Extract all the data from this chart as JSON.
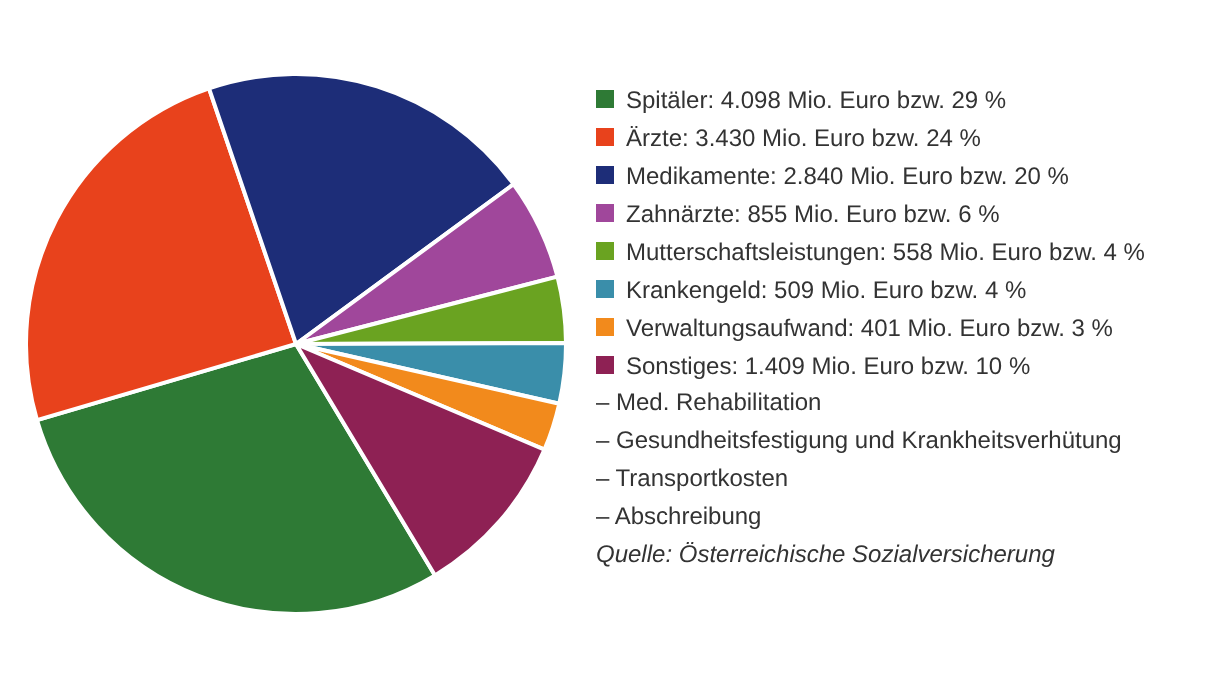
{
  "chart_data": {
    "type": "pie",
    "categories": [
      "Spitäler: 4.098 Mio. Euro bzw. 29 %",
      "Ärzte: 3.430 Mio. Euro bzw. 24 %",
      "Medikamente: 2.840 Mio. Euro bzw. 20 %",
      "Zahnärzte: 855 Mio. Euro bzw. 6 %",
      "Mutterschaftsleistungen: 558 Mio. Euro bzw. 4 %",
      "Krankengeld: 509 Mio. Euro bzw. 4 %",
      "Verwaltungsaufwand: 401 Mio. Euro bzw. 3 %",
      "Sonstiges: 1.409 Mio. Euro bzw. 10 %"
    ],
    "values": [
      4098,
      3430,
      2840,
      855,
      558,
      509,
      401,
      1409
    ],
    "colors": [
      "#2e7a35",
      "#e8421c",
      "#1d2d78",
      "#a0479b",
      "#6aa321",
      "#3a8eaa",
      "#f28a1c",
      "#8e2154"
    ],
    "legend": "right",
    "annotations": [
      "– Med. Rehabilitation",
      "– Gesundheitsfestigung und Krankheitsverhütung",
      "– Transportkosten",
      "– Abschreibung",
      "Quelle: Österreichische Sozialversicherung"
    ]
  }
}
